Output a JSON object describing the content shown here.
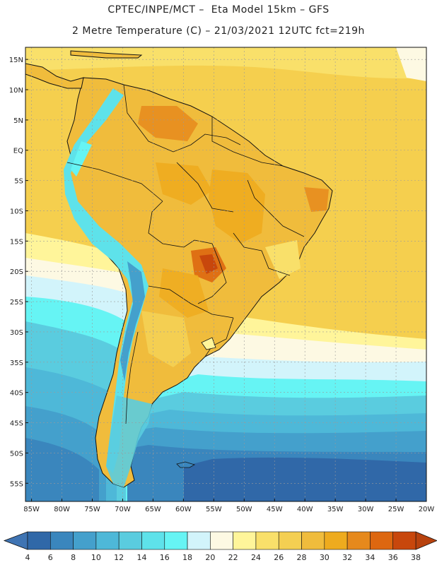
{
  "title": {
    "line1": "CPTEC/INPE/MCT –  Eta Model 15km – GFS",
    "line2": "2 Metre Temperature (C) – 21/03/2021 12UTC fct=219h"
  },
  "map": {
    "lon_range": [
      -86,
      -20
    ],
    "lat_range": [
      -58,
      17
    ],
    "lon_ticks": [
      "85W",
      "80W",
      "75W",
      "70W",
      "65W",
      "60W",
      "55W",
      "50W",
      "45W",
      "40W",
      "35W",
      "30W",
      "25W",
      "20W"
    ],
    "lat_ticks": [
      "15N",
      "10N",
      "5N",
      "EQ",
      "5S",
      "10S",
      "15S",
      "20S",
      "25S",
      "30S",
      "35S",
      "40S",
      "45S",
      "50S",
      "55S"
    ],
    "lon_tick_values": [
      -85,
      -80,
      -75,
      -70,
      -65,
      -60,
      -55,
      -50,
      -45,
      -40,
      -35,
      -30,
      -25,
      -20
    ],
    "lat_tick_values": [
      15,
      10,
      5,
      0,
      -5,
      -10,
      -15,
      -20,
      -25,
      -30,
      -35,
      -40,
      -45,
      -50,
      -55
    ]
  },
  "colorbar": {
    "labels": [
      "4",
      "6",
      "8",
      "10",
      "12",
      "14",
      "16",
      "18",
      "20",
      "22",
      "24",
      "26",
      "28",
      "30",
      "32",
      "34",
      "36",
      "38"
    ],
    "low_color": "#3f74b3",
    "high_color": "#b8420e",
    "colors": [
      "#3068a8",
      "#3a86bd",
      "#44a0cc",
      "#4eb8d8",
      "#5accdf",
      "#5ee2ea",
      "#66f4f4",
      "#d2f4fb",
      "#fdf9e3",
      "#fff59a",
      "#f9e06a",
      "#f4cf52",
      "#f0bc3c",
      "#eeab1e",
      "#e6891c",
      "#dd6710",
      "#c8470c"
    ]
  }
}
